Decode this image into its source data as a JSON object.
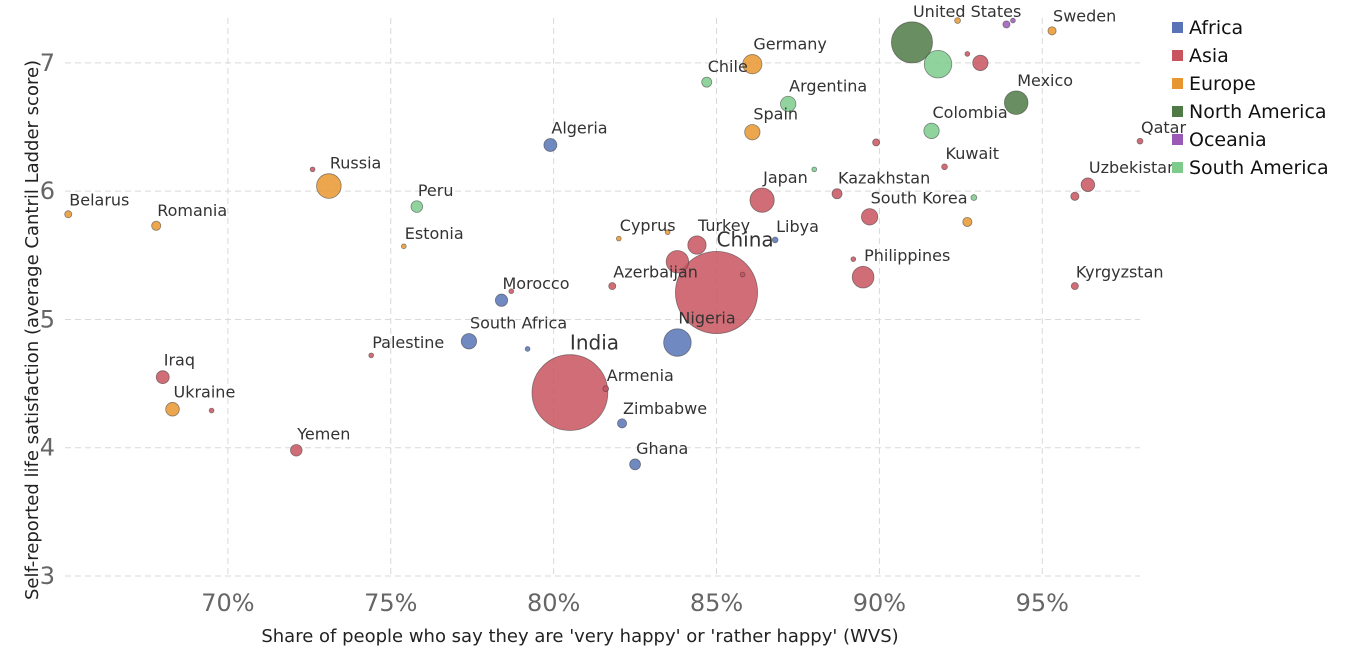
{
  "chart_data": {
    "type": "scatter",
    "title": "",
    "xlabel": "Share of people who say they are 'very happy' or 'rather happy' (WVS)",
    "ylabel": "Self-reported life satisfaction (average Cantril Ladder score)",
    "xlim": [
      65,
      98
    ],
    "ylim": [
      3,
      7.35
    ],
    "x_ticks": [
      70,
      75,
      80,
      85,
      90,
      95
    ],
    "x_tick_labels": [
      "70%",
      "75%",
      "80%",
      "85%",
      "90%",
      "95%"
    ],
    "y_ticks": [
      3,
      4,
      5,
      6,
      7
    ],
    "y_tick_labels": [
      "3",
      "4",
      "5",
      "6",
      "7"
    ],
    "grid": true,
    "legend_position": "right",
    "colors": {
      "Africa": "#5874b6",
      "Asia": "#c8545f",
      "Europe": "#e8962f",
      "North America": "#4f7a45",
      "Oceania": "#9b59b6",
      "South America": "#7ecb8c"
    },
    "legend": [
      "Africa",
      "Asia",
      "Europe",
      "North America",
      "Oceania",
      "South America"
    ],
    "points": [
      {
        "label": "Belarus",
        "x": 65.1,
        "y": 5.82,
        "region": "Europe",
        "size": 0.3
      },
      {
        "label": "Romania",
        "x": 67.8,
        "y": 5.73,
        "region": "Europe",
        "size": 0.5
      },
      {
        "label": "Iraq",
        "x": 68.0,
        "y": 4.55,
        "region": "Asia",
        "size": 1.0
      },
      {
        "label": "Ukraine",
        "x": 68.3,
        "y": 4.3,
        "region": "Europe",
        "size": 1.1
      },
      {
        "label": "",
        "x": 69.5,
        "y": 4.29,
        "region": "Asia",
        "size": 0.05
      },
      {
        "label": "Yemen",
        "x": 72.1,
        "y": 3.98,
        "region": "Asia",
        "size": 0.8
      },
      {
        "label": "",
        "x": 72.6,
        "y": 6.17,
        "region": "Asia",
        "size": 0.05
      },
      {
        "label": "Russia",
        "x": 73.1,
        "y": 6.04,
        "region": "Europe",
        "size": 3.6
      },
      {
        "label": "Palestine",
        "x": 74.4,
        "y": 4.72,
        "region": "Asia",
        "size": 0.1
      },
      {
        "label": "Estonia",
        "x": 75.4,
        "y": 5.57,
        "region": "Europe",
        "size": 0.05
      },
      {
        "label": "Peru",
        "x": 75.8,
        "y": 5.88,
        "region": "South America",
        "size": 0.8
      },
      {
        "label": "South Africa",
        "x": 77.4,
        "y": 4.83,
        "region": "Africa",
        "size": 1.4
      },
      {
        "label": "Morocco",
        "x": 78.4,
        "y": 5.15,
        "region": "Africa",
        "size": 0.9
      },
      {
        "label": "",
        "x": 78.7,
        "y": 5.22,
        "region": "Asia",
        "size": 0.05
      },
      {
        "label": "",
        "x": 79.2,
        "y": 4.77,
        "region": "Africa",
        "size": 0.1
      },
      {
        "label": "Algeria",
        "x": 79.9,
        "y": 6.36,
        "region": "Africa",
        "size": 1.0
      },
      {
        "label": "India",
        "x": 80.5,
        "y": 4.43,
        "region": "Asia",
        "size": 34.0
      },
      {
        "label": "Armenia",
        "x": 81.6,
        "y": 4.46,
        "region": "Asia",
        "size": 0.2
      },
      {
        "label": "Azerbaijan",
        "x": 81.8,
        "y": 5.26,
        "region": "Asia",
        "size": 0.3
      },
      {
        "label": "Cyprus",
        "x": 82.0,
        "y": 5.63,
        "region": "Europe",
        "size": 0.1
      },
      {
        "label": "Zimbabwe",
        "x": 82.1,
        "y": 4.19,
        "region": "Africa",
        "size": 0.5
      },
      {
        "label": "Ghana",
        "x": 82.5,
        "y": 3.87,
        "region": "Africa",
        "size": 0.7
      },
      {
        "label": "",
        "x": 83.5,
        "y": 5.68,
        "region": "Europe",
        "size": 0.05
      },
      {
        "label": "",
        "x": 83.8,
        "y": 5.45,
        "region": "Asia",
        "size": 3.0
      },
      {
        "label": "Nigeria",
        "x": 83.8,
        "y": 4.82,
        "region": "Africa",
        "size": 4.5
      },
      {
        "label": "Turkey",
        "x": 84.4,
        "y": 5.58,
        "region": "Asia",
        "size": 2.0
      },
      {
        "label": "Chile",
        "x": 84.7,
        "y": 6.85,
        "region": "South America",
        "size": 0.6
      },
      {
        "label": "China",
        "x": 85.0,
        "y": 5.21,
        "region": "Asia",
        "size": 40.0
      },
      {
        "label": "",
        "x": 85.8,
        "y": 5.35,
        "region": "Asia",
        "size": 0.1
      },
      {
        "label": "Germany",
        "x": 86.1,
        "y": 6.99,
        "region": "Europe",
        "size": 2.2
      },
      {
        "label": "Spain",
        "x": 86.1,
        "y": 6.46,
        "region": "Europe",
        "size": 1.4
      },
      {
        "label": "Japan",
        "x": 86.4,
        "y": 5.93,
        "region": "Asia",
        "size": 3.5
      },
      {
        "label": "Libya",
        "x": 86.8,
        "y": 5.62,
        "region": "Africa",
        "size": 0.2
      },
      {
        "label": "Argentina",
        "x": 87.2,
        "y": 6.68,
        "region": "South America",
        "size": 1.4
      },
      {
        "label": "",
        "x": 88.0,
        "y": 6.17,
        "region": "South America",
        "size": 0.05
      },
      {
        "label": "Kazakhstan",
        "x": 88.7,
        "y": 5.98,
        "region": "Asia",
        "size": 0.6
      },
      {
        "label": "",
        "x": 89.2,
        "y": 5.47,
        "region": "Asia",
        "size": 0.1
      },
      {
        "label": "Philippines",
        "x": 89.5,
        "y": 5.33,
        "region": "Asia",
        "size": 2.8
      },
      {
        "label": "South Korea",
        "x": 89.7,
        "y": 5.8,
        "region": "Asia",
        "size": 1.6
      },
      {
        "label": "",
        "x": 89.9,
        "y": 6.38,
        "region": "Asia",
        "size": 0.3
      },
      {
        "label": "United States",
        "x": 91.0,
        "y": 7.16,
        "region": "North America",
        "size": 10.0
      },
      {
        "label": "Colombia",
        "x": 91.6,
        "y": 6.47,
        "region": "South America",
        "size": 1.4
      },
      {
        "label": "",
        "x": 91.8,
        "y": 6.99,
        "region": "South America",
        "size": 4.5
      },
      {
        "label": "Kuwait",
        "x": 92.0,
        "y": 6.19,
        "region": "Asia",
        "size": 0.2
      },
      {
        "label": "",
        "x": 92.4,
        "y": 7.33,
        "region": "Europe",
        "size": 0.2
      },
      {
        "label": "",
        "x": 92.7,
        "y": 5.76,
        "region": "Europe",
        "size": 0.5
      },
      {
        "label": "",
        "x": 92.7,
        "y": 7.07,
        "region": "Asia",
        "size": 0.1
      },
      {
        "label": "",
        "x": 92.9,
        "y": 5.95,
        "region": "South America",
        "size": 0.2
      },
      {
        "label": "",
        "x": 93.1,
        "y": 7.0,
        "region": "Asia",
        "size": 1.4
      },
      {
        "label": "",
        "x": 93.9,
        "y": 7.3,
        "region": "Oceania",
        "size": 0.3
      },
      {
        "label": "",
        "x": 94.1,
        "y": 7.33,
        "region": "Oceania",
        "size": 0.1
      },
      {
        "label": "Mexico",
        "x": 94.2,
        "y": 6.69,
        "region": "North America",
        "size": 3.3
      },
      {
        "label": "Sweden",
        "x": 95.3,
        "y": 7.25,
        "region": "Europe",
        "size": 0.4
      },
      {
        "label": "Kyrgyzstan",
        "x": 96.0,
        "y": 5.26,
        "region": "Asia",
        "size": 0.3
      },
      {
        "label": "",
        "x": 96.0,
        "y": 5.96,
        "region": "Asia",
        "size": 0.4
      },
      {
        "label": "Uzbekistan",
        "x": 96.4,
        "y": 6.05,
        "region": "Asia",
        "size": 1.1
      },
      {
        "label": "Qatar",
        "x": 98.0,
        "y": 6.39,
        "region": "Asia",
        "size": 0.2
      }
    ]
  }
}
